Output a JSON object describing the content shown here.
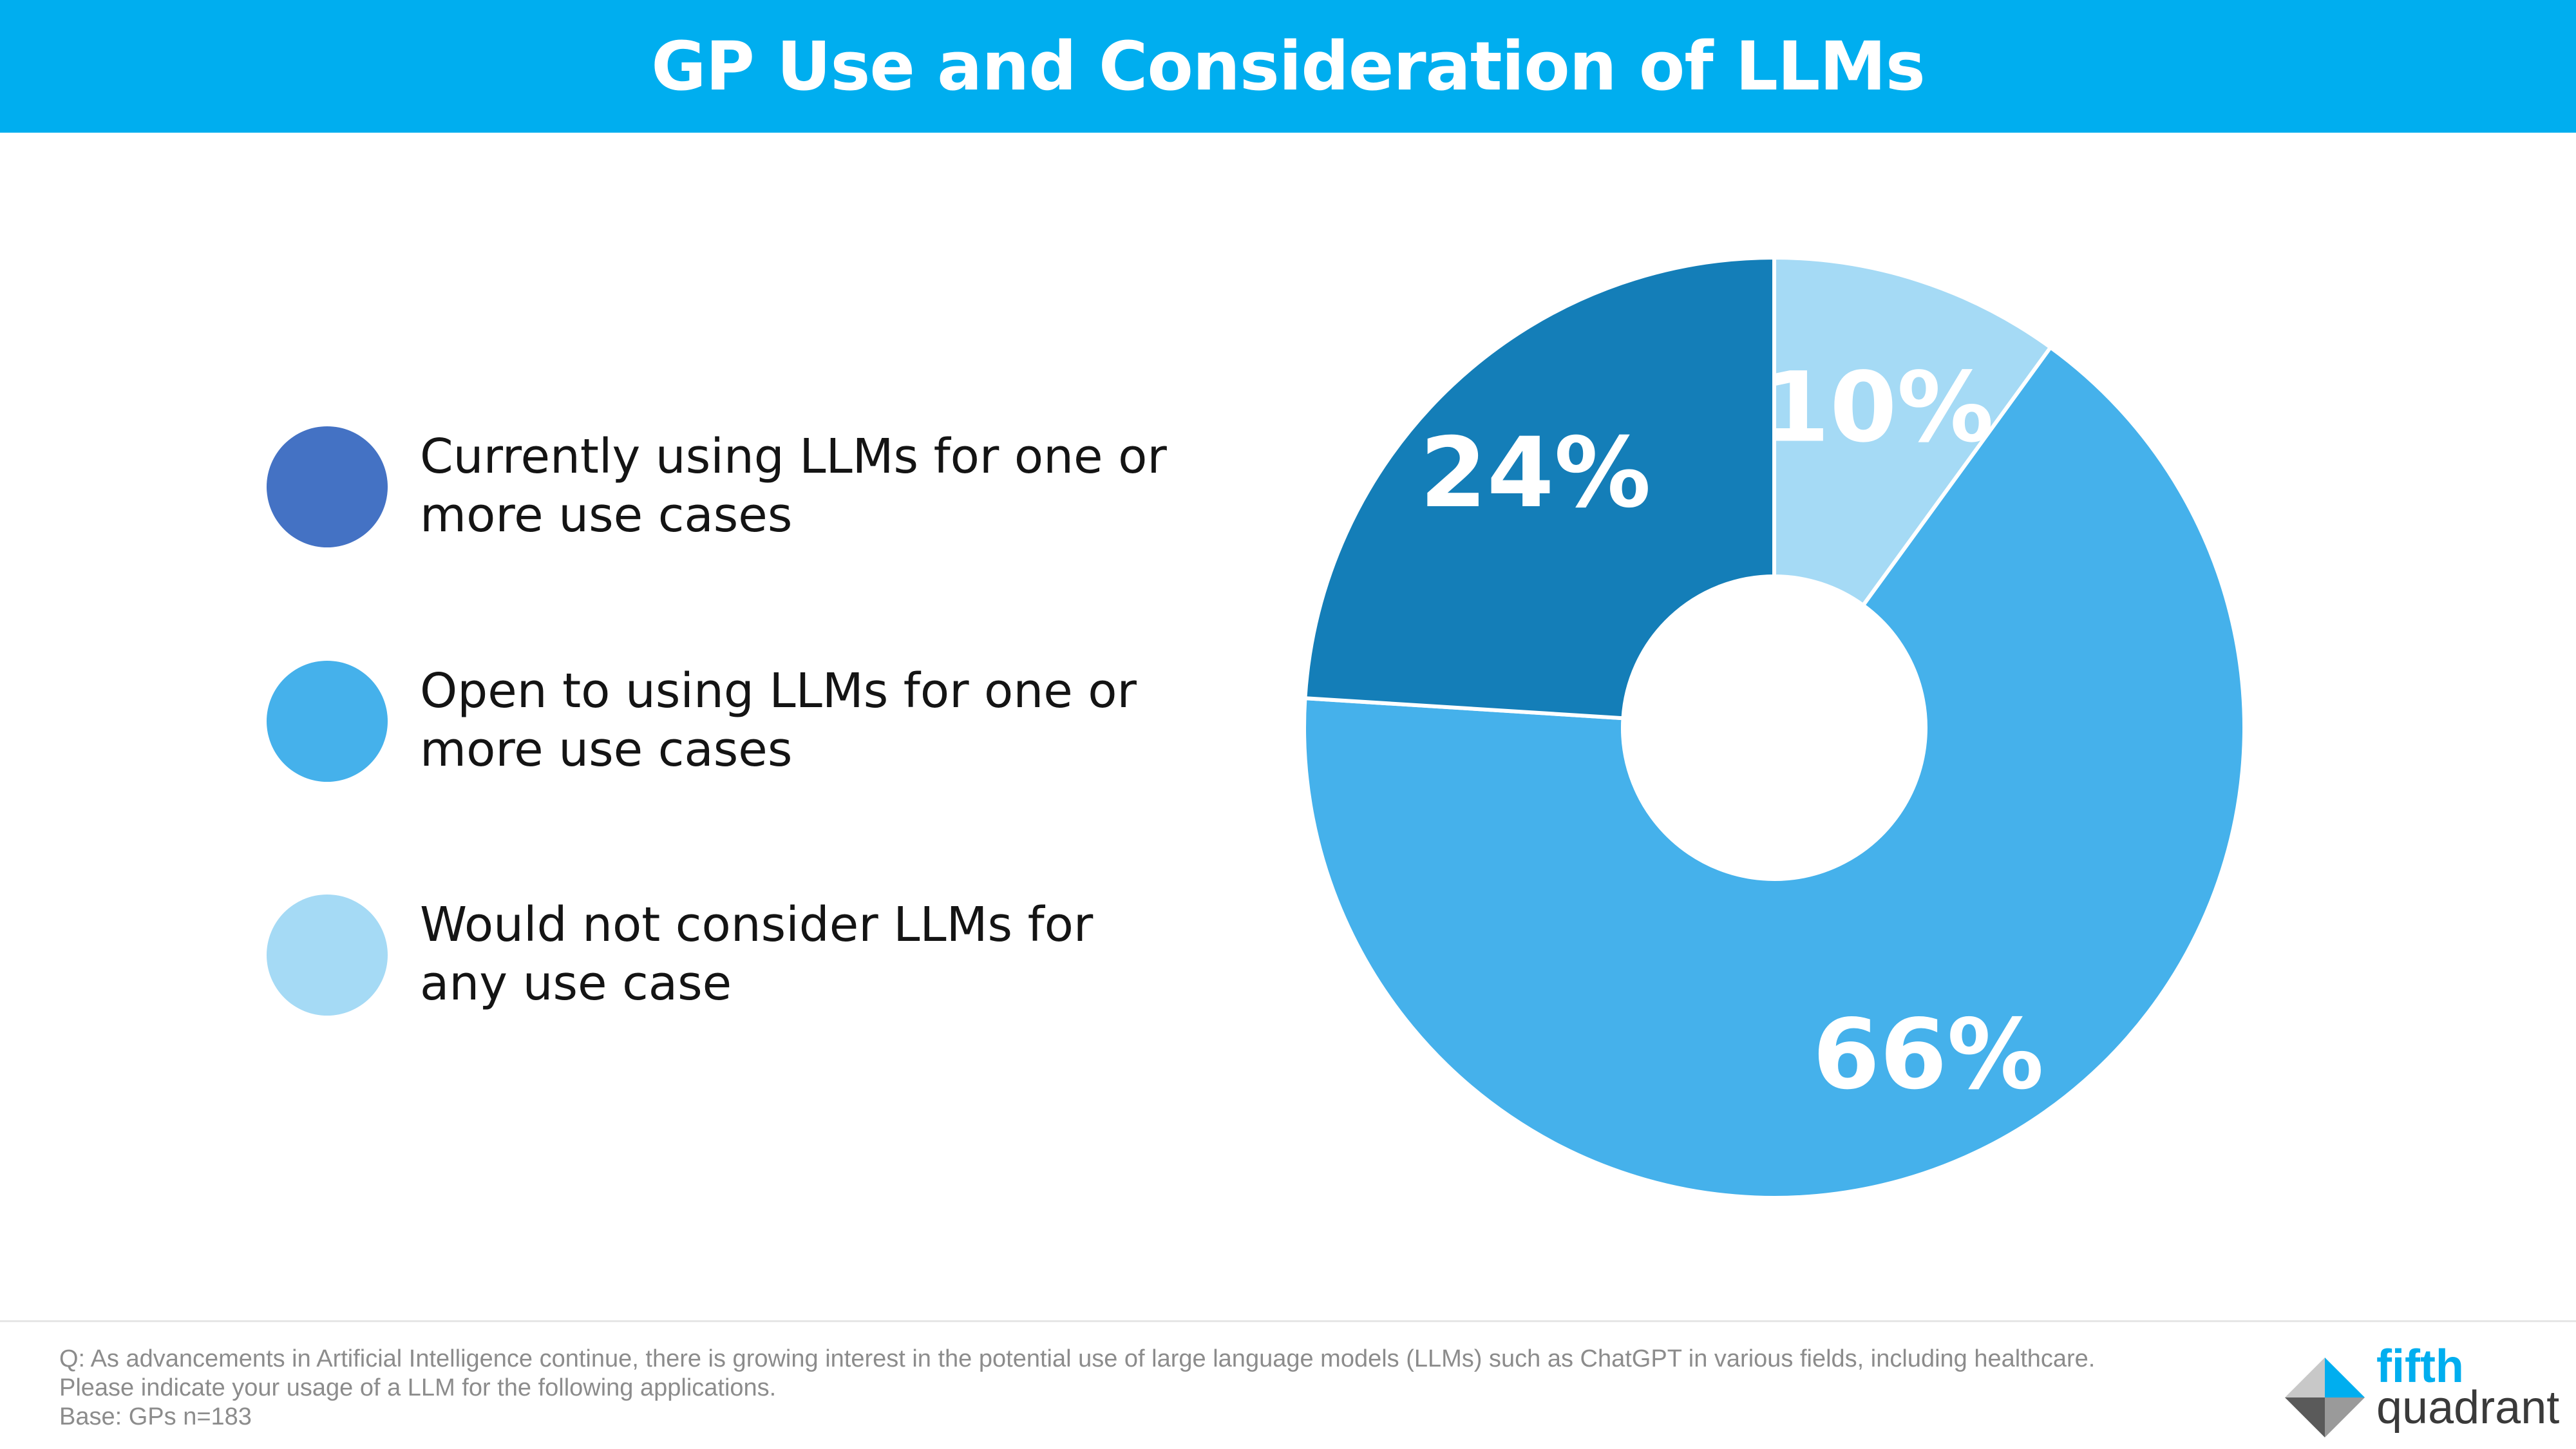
{
  "header": {
    "title": "GP Use and Consideration of LLMs"
  },
  "chart_data": {
    "type": "pie",
    "donut": true,
    "categories": [
      "Currently using LLMs for one or more use cases",
      "Open to using LLMs for one or more use cases",
      "Would not consider LLMs for any use case"
    ],
    "values": [
      24,
      66,
      10
    ],
    "labels": [
      "24%",
      "66%",
      "10%"
    ],
    "legend_lines": [
      [
        "Currently using LLMs for one or",
        "more use cases"
      ],
      [
        "Open to using LLMs for one or",
        "more use cases"
      ],
      [
        "Would not consider LLMs for",
        "any use case"
      ]
    ],
    "colors": {
      "legend": [
        "#4472c4",
        "#45b1eb",
        "#a5daf5"
      ],
      "slices": [
        "#147eb8",
        "#45b1eb",
        "#a5daf5"
      ]
    },
    "legend_position": "left"
  },
  "footnote": {
    "lines": [
      "Q: As advancements in Artificial Intelligence continue, there is growing interest in the potential use of large language models (LLMs) such as ChatGPT in various fields, including healthcare.",
      "Please indicate your usage of a LLM for the following applications.",
      "Base: GPs n=183"
    ]
  },
  "logo": {
    "word1": "fifth",
    "word2": "quadrant"
  },
  "colors": {
    "header_bg": "#00aeef",
    "title_text": "#ffffff",
    "footnote_text": "#8c8c8c"
  }
}
